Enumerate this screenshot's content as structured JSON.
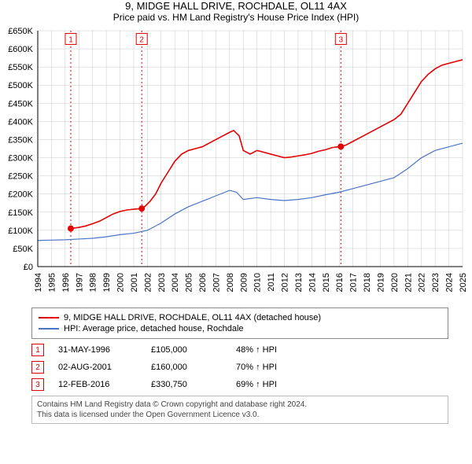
{
  "title": "9, MIDGE HALL DRIVE, ROCHDALE, OL11 4AX",
  "subtitle": "Price paid vs. HM Land Registry's House Price Index (HPI)",
  "chart": {
    "type": "line",
    "background_color": "#ffffff",
    "grid_color": "#c8c8c8",
    "axis_color": "#000000",
    "y": {
      "min": 0,
      "max": 650000,
      "step": 50000,
      "prefix": "£",
      "suffix": "K",
      "divisor": 1000
    },
    "x": {
      "min": 1994,
      "max": 2025,
      "step": 1
    },
    "series": [
      {
        "name": "property",
        "label": "9, MIDGE HALL DRIVE, ROCHDALE, OL11 4AX (detached house)",
        "color": "#e40000",
        "width": 1.6,
        "data": [
          [
            1996.41,
            105000
          ],
          [
            1996.6,
            106000
          ],
          [
            1997,
            108000
          ],
          [
            1997.5,
            112000
          ],
          [
            1998,
            118000
          ],
          [
            1998.5,
            125000
          ],
          [
            1999,
            135000
          ],
          [
            1999.5,
            145000
          ],
          [
            2000,
            152000
          ],
          [
            2000.5,
            156000
          ],
          [
            2001,
            158000
          ],
          [
            2001.59,
            160000
          ],
          [
            2001.8,
            165000
          ],
          [
            2002.2,
            180000
          ],
          [
            2002.6,
            200000
          ],
          [
            2003,
            230000
          ],
          [
            2003.5,
            260000
          ],
          [
            2004,
            290000
          ],
          [
            2004.5,
            310000
          ],
          [
            2005,
            320000
          ],
          [
            2005.5,
            325000
          ],
          [
            2006,
            330000
          ],
          [
            2006.5,
            340000
          ],
          [
            2007,
            350000
          ],
          [
            2007.5,
            360000
          ],
          [
            2008,
            370000
          ],
          [
            2008.3,
            375000
          ],
          [
            2008.7,
            360000
          ],
          [
            2009,
            320000
          ],
          [
            2009.5,
            310000
          ],
          [
            2010,
            320000
          ],
          [
            2010.5,
            315000
          ],
          [
            2011,
            310000
          ],
          [
            2011.5,
            305000
          ],
          [
            2012,
            300000
          ],
          [
            2012.5,
            302000
          ],
          [
            2013,
            305000
          ],
          [
            2013.5,
            308000
          ],
          [
            2014,
            312000
          ],
          [
            2014.5,
            318000
          ],
          [
            2015,
            322000
          ],
          [
            2015.5,
            328000
          ],
          [
            2016.12,
            330750
          ],
          [
            2016.5,
            335000
          ],
          [
            2017,
            345000
          ],
          [
            2017.5,
            355000
          ],
          [
            2018,
            365000
          ],
          [
            2018.5,
            375000
          ],
          [
            2019,
            385000
          ],
          [
            2019.5,
            395000
          ],
          [
            2020,
            405000
          ],
          [
            2020.5,
            420000
          ],
          [
            2021,
            450000
          ],
          [
            2021.5,
            480000
          ],
          [
            2022,
            510000
          ],
          [
            2022.5,
            530000
          ],
          [
            2023,
            545000
          ],
          [
            2023.5,
            555000
          ],
          [
            2024,
            560000
          ],
          [
            2024.5,
            565000
          ],
          [
            2025,
            570000
          ]
        ]
      },
      {
        "name": "hpi",
        "label": "HPI: Average price, detached house, Rochdale",
        "color": "#4a74c9",
        "width": 1.2,
        "data": [
          [
            1994,
            72000
          ],
          [
            1995,
            73000
          ],
          [
            1996,
            74000
          ],
          [
            1997,
            76000
          ],
          [
            1998,
            78000
          ],
          [
            1999,
            82000
          ],
          [
            2000,
            88000
          ],
          [
            2001,
            92000
          ],
          [
            2002,
            100000
          ],
          [
            2003,
            120000
          ],
          [
            2004,
            145000
          ],
          [
            2005,
            165000
          ],
          [
            2006,
            180000
          ],
          [
            2007,
            195000
          ],
          [
            2008,
            210000
          ],
          [
            2008.5,
            205000
          ],
          [
            2009,
            185000
          ],
          [
            2010,
            190000
          ],
          [
            2011,
            185000
          ],
          [
            2012,
            182000
          ],
          [
            2013,
            185000
          ],
          [
            2014,
            190000
          ],
          [
            2015,
            198000
          ],
          [
            2016,
            205000
          ],
          [
            2017,
            215000
          ],
          [
            2018,
            225000
          ],
          [
            2019,
            235000
          ],
          [
            2020,
            245000
          ],
          [
            2021,
            270000
          ],
          [
            2022,
            300000
          ],
          [
            2023,
            320000
          ],
          [
            2024,
            330000
          ],
          [
            2025,
            340000
          ]
        ]
      }
    ],
    "markers": [
      {
        "id": "1",
        "x": 1996.41,
        "y": 105000,
        "color": "#e40000"
      },
      {
        "id": "2",
        "x": 2001.59,
        "y": 160000,
        "color": "#e40000"
      },
      {
        "id": "3",
        "x": 2016.12,
        "y": 330750,
        "color": "#e40000"
      }
    ],
    "marker_top_y": 625000
  },
  "legend": [
    {
      "color": "#e40000",
      "label": "9, MIDGE HALL DRIVE, ROCHDALE, OL11 4AX (detached house)"
    },
    {
      "color": "#4a74c9",
      "label": "HPI: Average price, detached house, Rochdale"
    }
  ],
  "events": [
    {
      "id": "1",
      "color": "#e40000",
      "date": "31-MAY-1996",
      "price": "£105,000",
      "delta": "48% ↑ HPI"
    },
    {
      "id": "2",
      "color": "#e40000",
      "date": "02-AUG-2001",
      "price": "£160,000",
      "delta": "70% ↑ HPI"
    },
    {
      "id": "3",
      "color": "#e40000",
      "date": "12-FEB-2016",
      "price": "£330,750",
      "delta": "69% ↑ HPI"
    }
  ],
  "footer_line1": "Contains HM Land Registry data © Crown copyright and database right 2024.",
  "footer_line2": "This data is licensed under the Open Government Licence v3.0."
}
